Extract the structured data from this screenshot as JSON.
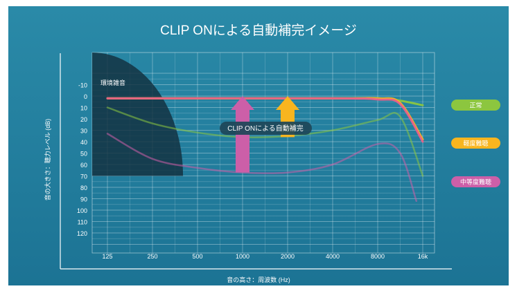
{
  "chart_data": {
    "type": "line",
    "title": "CLIP ONによる自動補完イメージ",
    "xlabel": "音の高さ：周波数 (Hz)",
    "ylabel": "音の大きさ：聴力レベル (dB)",
    "x_ticks": [
      "125",
      "250",
      "500",
      "1000",
      "2000",
      "4000",
      "8000",
      "16k"
    ],
    "y_ticks": [
      "-10",
      "0",
      "10",
      "20",
      "30",
      "40",
      "50",
      "60",
      "70",
      "80",
      "90",
      "100",
      "110",
      "120"
    ],
    "ylim": [
      -20,
      130
    ],
    "y_inverted": true,
    "x_scale": "log2-octaves",
    "x_values": [
      125,
      250,
      500,
      1000,
      2000,
      4000,
      8000,
      16000
    ],
    "grid": true,
    "legend_position": "right",
    "colors": {
      "normal": "#8cc63f",
      "mild": "#f8b51f",
      "moderate": "#cc5fa8",
      "compensation": "#f06aa8"
    },
    "legend": [
      {
        "label": "正常",
        "color": "#8cc63f"
      },
      {
        "label": "軽度難聴",
        "color": "#f8b51f"
      },
      {
        "label": "中等度難聴",
        "color": "#cc5fa8"
      }
    ],
    "series": [
      {
        "key": "normal-hearing",
        "color": "#8cc63f",
        "x": [
          125,
          250,
          500,
          1000,
          2000,
          4000,
          8000,
          11300,
          16000
        ],
        "y": [
          10,
          24,
          32,
          36,
          35,
          30,
          21,
          18,
          70
        ]
      },
      {
        "key": "moderate-hearing-loss",
        "color": "#cc5fa8",
        "x": [
          125,
          250,
          500,
          1000,
          2000,
          4000,
          8000,
          11300,
          14500
        ],
        "y": [
          33,
          55,
          63,
          67,
          67,
          60,
          42,
          50,
          92
        ]
      },
      {
        "key": "compensated-normal",
        "color": "#8cc63f",
        "x": [
          125,
          4000,
          8000,
          11300,
          16000
        ],
        "y": [
          2,
          2,
          2,
          4,
          8
        ]
      },
      {
        "key": "compensated-mild",
        "color": "#f8b51f",
        "x": [
          125,
          4000,
          8000,
          11300,
          16000
        ],
        "y": [
          2,
          2,
          2,
          6,
          38
        ]
      },
      {
        "key": "compensated-moderate",
        "color": "#e8608a",
        "x": [
          125,
          4000,
          8000,
          11300,
          16000
        ],
        "y": [
          2,
          2,
          3,
          7,
          40
        ]
      }
    ],
    "noise_region": {
      "label": "環境雑音",
      "max_frequency": 400,
      "level": 70
    },
    "arrows": [
      {
        "x": 1000,
        "from": 67,
        "to": 0,
        "color": "#cc5fa8"
      },
      {
        "x": 2000,
        "from": 36,
        "to": 0,
        "color": "#f8b51f"
      }
    ],
    "annotation": "CLIP ONによる自動補完"
  }
}
